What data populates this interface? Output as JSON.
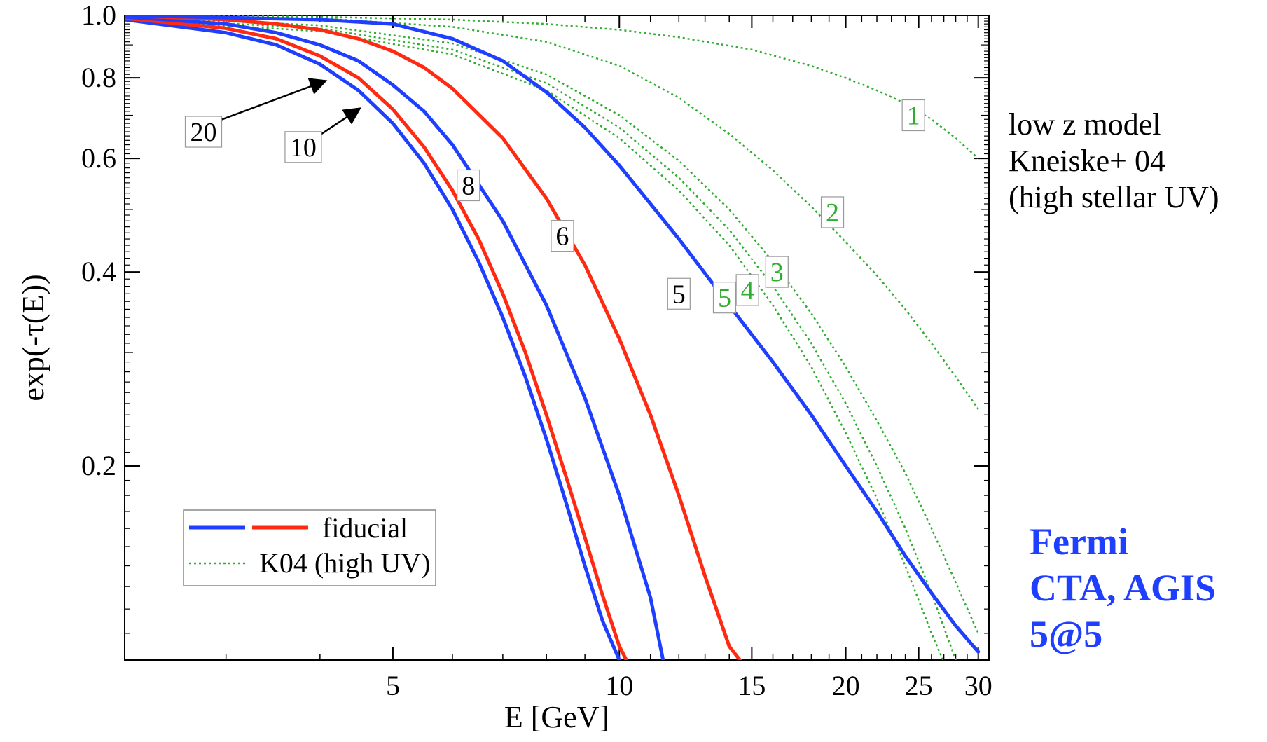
{
  "chart_data": {
    "type": "line",
    "xlabel": "E [GeV]",
    "ylabel": "exp(-τ(E))",
    "x_scale": "log",
    "y_scale": "log",
    "xlim": [
      2.2,
      31
    ],
    "ylim": [
      0.1,
      1.0
    ],
    "x_ticks": [
      5,
      10,
      15,
      20,
      25,
      30
    ],
    "y_ticks": [
      1.0,
      0.8,
      0.6,
      0.4,
      0.2
    ],
    "y_tick_labels": [
      "1.0",
      "0.8",
      "0.6",
      "0.4",
      "0.2"
    ],
    "legend": {
      "placement": "lower-left",
      "entries": [
        {
          "label": "fiducial",
          "styles": [
            "blue-solid",
            "red-solid"
          ]
        },
        {
          "label": "K04 (high UV)",
          "styles": [
            "green-dotted"
          ]
        }
      ]
    },
    "series": [
      {
        "group": "fiducial",
        "color": "#1f3fff",
        "style": "solid",
        "label": "20",
        "x": [
          2.2,
          3,
          3.5,
          4,
          4.5,
          5,
          5.5,
          6,
          6.5,
          7,
          7.5,
          8,
          8.5,
          9,
          9.5,
          10,
          10.3
        ],
        "y": [
          0.985,
          0.94,
          0.9,
          0.84,
          0.765,
          0.68,
          0.59,
          0.5,
          0.415,
          0.34,
          0.275,
          0.22,
          0.175,
          0.14,
          0.115,
          0.1,
          0.092
        ]
      },
      {
        "group": "fiducial",
        "color": "#ff2a12",
        "style": "solid",
        "label": "10",
        "x": [
          2.2,
          3,
          3.5,
          4,
          4.5,
          5,
          5.5,
          6,
          6.5,
          7,
          7.5,
          8,
          8.5,
          9,
          9.5,
          10,
          10.6
        ],
        "y": [
          0.99,
          0.955,
          0.92,
          0.865,
          0.8,
          0.715,
          0.625,
          0.535,
          0.45,
          0.37,
          0.3,
          0.24,
          0.192,
          0.155,
          0.126,
          0.105,
          0.092
        ]
      },
      {
        "group": "fiducial",
        "color": "#1f3fff",
        "style": "solid",
        "label": "8",
        "x": [
          2.2,
          3,
          3.5,
          4,
          4.5,
          5,
          5.5,
          6,
          7,
          8,
          9,
          10,
          11,
          11.6
        ],
        "y": [
          0.995,
          0.97,
          0.94,
          0.9,
          0.85,
          0.78,
          0.71,
          0.63,
          0.48,
          0.355,
          0.255,
          0.18,
          0.125,
          0.092
        ]
      },
      {
        "group": "fiducial",
        "color": "#ff2a12",
        "style": "solid",
        "label": "6",
        "x": [
          2.2,
          3,
          3.5,
          4,
          4.5,
          5,
          5.5,
          6,
          7,
          8,
          9,
          10,
          11,
          12,
          13,
          14,
          15.3
        ],
        "y": [
          1.0,
          0.985,
          0.97,
          0.95,
          0.92,
          0.88,
          0.83,
          0.77,
          0.645,
          0.52,
          0.41,
          0.315,
          0.24,
          0.18,
          0.135,
          0.105,
          0.092
        ]
      },
      {
        "group": "fiducial",
        "color": "#1f3fff",
        "style": "solid",
        "label": "5",
        "x": [
          2.2,
          4,
          5,
          6,
          7,
          8,
          9,
          10,
          12,
          14,
          16,
          18,
          20,
          22,
          24,
          26,
          28,
          30
        ],
        "y": [
          1.0,
          0.985,
          0.97,
          0.92,
          0.85,
          0.76,
          0.67,
          0.585,
          0.45,
          0.355,
          0.29,
          0.24,
          0.2,
          0.17,
          0.145,
          0.127,
          0.113,
          0.103
        ]
      },
      {
        "group": "K04",
        "color": "#2eae2e",
        "style": "dotted",
        "label": "1",
        "x": [
          2.2,
          4,
          6,
          8,
          10,
          12,
          15,
          18,
          20,
          22,
          24,
          26,
          28,
          30
        ],
        "y": [
          1.0,
          0.995,
          0.985,
          0.97,
          0.95,
          0.925,
          0.885,
          0.835,
          0.8,
          0.765,
          0.73,
          0.69,
          0.645,
          0.6
        ]
      },
      {
        "group": "K04",
        "color": "#2eae2e",
        "style": "dotted",
        "label": "2",
        "x": [
          2.2,
          4,
          6,
          8,
          10,
          12,
          14,
          16,
          18,
          20,
          22,
          24,
          26,
          28,
          30
        ],
        "y": [
          1.0,
          0.99,
          0.96,
          0.91,
          0.835,
          0.745,
          0.655,
          0.575,
          0.505,
          0.445,
          0.395,
          0.35,
          0.31,
          0.275,
          0.245
        ]
      },
      {
        "group": "K04",
        "color": "#2eae2e",
        "style": "dotted",
        "label": "3",
        "x": [
          2.2,
          4,
          6,
          8,
          10,
          12,
          14,
          16,
          18,
          20,
          22,
          24,
          26,
          28,
          30
        ],
        "y": [
          0.995,
          0.965,
          0.905,
          0.81,
          0.7,
          0.595,
          0.5,
          0.415,
          0.345,
          0.285,
          0.235,
          0.195,
          0.16,
          0.132,
          0.11
        ]
      },
      {
        "group": "K04",
        "color": "#2eae2e",
        "style": "dotted",
        "label": "4",
        "x": [
          2.2,
          4,
          6,
          8,
          10,
          12,
          14,
          16,
          18,
          20,
          22,
          24,
          26,
          28,
          29.5
        ],
        "y": [
          0.99,
          0.955,
          0.885,
          0.785,
          0.67,
          0.56,
          0.465,
          0.38,
          0.31,
          0.25,
          0.2,
          0.16,
          0.127,
          0.1,
          0.09
        ]
      },
      {
        "group": "K04",
        "color": "#2eae2e",
        "style": "dotted",
        "label": "5",
        "x": [
          2.2,
          4,
          6,
          8,
          10,
          12,
          14,
          16,
          18,
          20,
          22,
          24,
          26,
          28
        ],
        "y": [
          0.985,
          0.945,
          0.87,
          0.765,
          0.645,
          0.535,
          0.44,
          0.355,
          0.285,
          0.225,
          0.178,
          0.14,
          0.11,
          0.09
        ]
      }
    ],
    "curve_labels": [
      {
        "text": "20",
        "color": "black",
        "x": 2.8,
        "y": 0.66,
        "arrow_to": [
          4.05,
          0.79
        ]
      },
      {
        "text": "10",
        "color": "black",
        "x": 3.8,
        "y": 0.625,
        "arrow_to": [
          4.5,
          0.715
        ]
      },
      {
        "text": "8",
        "color": "black",
        "x": 6.3,
        "y": 0.545
      },
      {
        "text": "6",
        "color": "black",
        "x": 8.4,
        "y": 0.455
      },
      {
        "text": "5",
        "color": "black",
        "x": 12.0,
        "y": 0.37
      },
      {
        "text": "5",
        "color": "green",
        "x": 13.8,
        "y": 0.365
      },
      {
        "text": "4",
        "color": "green",
        "x": 14.8,
        "y": 0.375
      },
      {
        "text": "3",
        "color": "green",
        "x": 16.2,
        "y": 0.4
      },
      {
        "text": "2",
        "color": "green",
        "x": 19.2,
        "y": 0.495
      },
      {
        "text": "1",
        "color": "green",
        "x": 24.6,
        "y": 0.7
      }
    ]
  },
  "side_note": {
    "lines": [
      "low z model",
      "Kneiske+ 04",
      "(high stellar UV)"
    ]
  },
  "fermi_note": {
    "color": "#1f3fff",
    "lines": [
      "Fermi",
      "CTA, AGIS",
      "5@5"
    ]
  }
}
